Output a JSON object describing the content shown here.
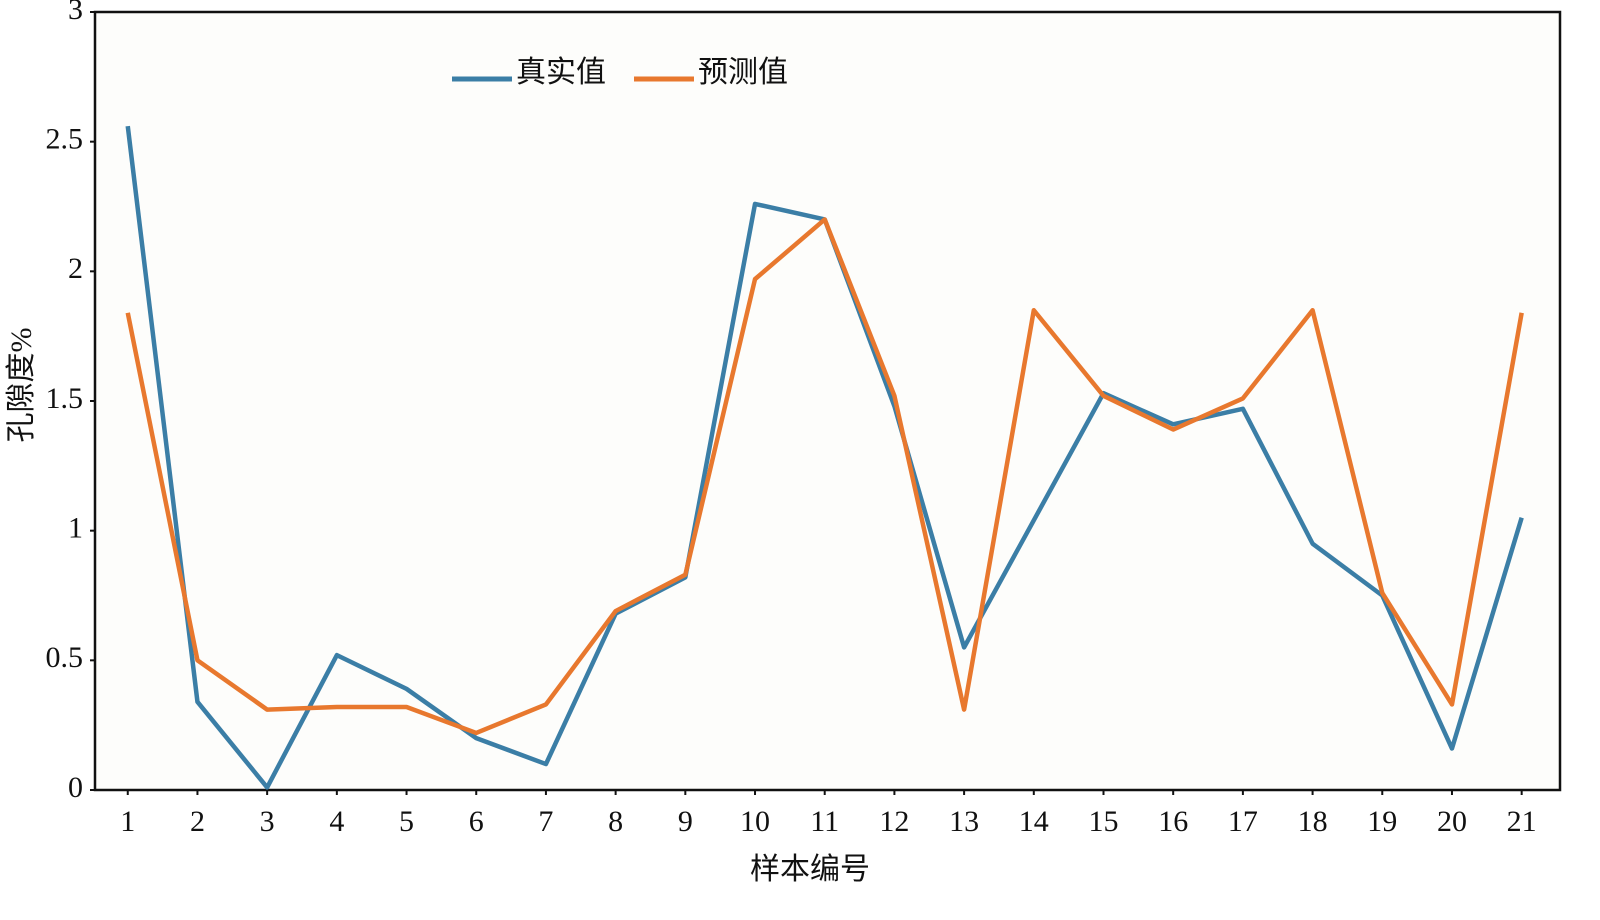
{
  "chart_data": {
    "type": "line",
    "x_label": "样本编号",
    "y_label": "孔隙度%",
    "x": [
      1,
      2,
      3,
      4,
      5,
      6,
      7,
      8,
      9,
      10,
      11,
      12,
      13,
      14,
      15,
      16,
      17,
      18,
      19,
      20,
      21
    ],
    "series": [
      {
        "name": "真实值",
        "color": "#3b7ea6",
        "values": [
          2.56,
          0.34,
          0.01,
          0.52,
          0.39,
          0.2,
          0.1,
          0.68,
          0.82,
          2.26,
          2.2,
          1.48,
          0.55,
          1.04,
          1.53,
          1.41,
          1.47,
          0.95,
          0.75,
          0.16,
          1.05
        ]
      },
      {
        "name": "预测值",
        "color": "#e8782e",
        "values": [
          1.84,
          0.5,
          0.31,
          0.32,
          0.32,
          0.22,
          0.33,
          0.69,
          0.83,
          1.97,
          2.2,
          1.52,
          0.31,
          1.85,
          1.52,
          1.39,
          1.51,
          1.85,
          0.76,
          0.33,
          1.84
        ]
      }
    ],
    "xlim": [
      0.53,
      21.55
    ],
    "xticks": [
      1,
      2,
      3,
      4,
      5,
      6,
      7,
      8,
      9,
      10,
      11,
      12,
      13,
      14,
      15,
      16,
      17,
      18,
      19,
      20,
      21
    ],
    "ylim": [
      0,
      3
    ],
    "yticks": [
      0,
      0.5,
      1,
      1.5,
      2,
      2.5,
      3
    ],
    "grid": false,
    "legend": "top"
  }
}
